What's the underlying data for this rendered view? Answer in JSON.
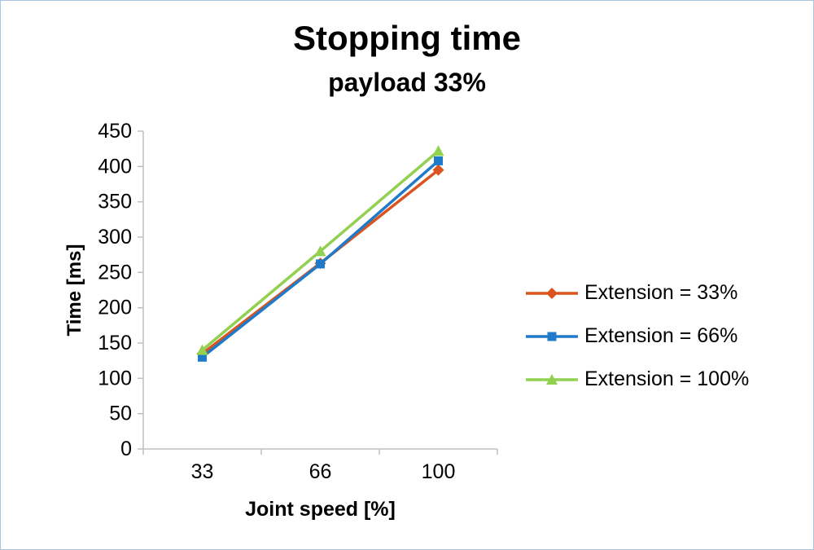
{
  "chart_data": {
    "type": "line",
    "title": "Stopping time",
    "subtitle": "payload 33%",
    "xlabel": "Joint speed [%]",
    "ylabel": "Time [ms]",
    "categories": [
      "33",
      "66",
      "100"
    ],
    "series": [
      {
        "name": "Extension = 33%",
        "values": [
          135,
          263,
          395
        ],
        "color": "#D9541E",
        "marker": "diamond"
      },
      {
        "name": "Extension = 66%",
        "values": [
          130,
          262,
          408
        ],
        "color": "#1F7AC9",
        "marker": "square"
      },
      {
        "name": "Extension = 100%",
        "values": [
          140,
          280,
          422
        ],
        "color": "#92D050",
        "marker": "triangle"
      }
    ],
    "ylim": [
      0,
      450
    ],
    "ytick_step": 50,
    "grid": false,
    "legend_position": "right",
    "axis_color": "#BFBFBF",
    "text_color": "#000000"
  }
}
